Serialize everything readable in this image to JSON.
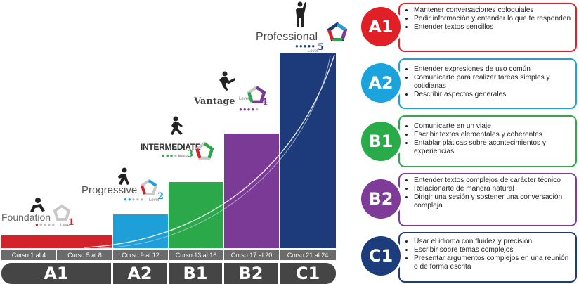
{
  "stages": [
    {
      "name": "Foundation",
      "level_word": "Level",
      "level_num": "1",
      "color": "#d2232a"
    },
    {
      "name": "Progressive",
      "level_word": "Level",
      "level_num": "2",
      "color": "#1f9fd8"
    },
    {
      "name": "INTERMEDIATE",
      "level_word": "Level",
      "level_num": "3",
      "color": "#2aa84a"
    },
    {
      "name": "Vantage",
      "level_word": "Level",
      "level_num": "4",
      "color": "#7b3a96"
    },
    {
      "name": "Professional",
      "level_word": "Level",
      "level_num": "5",
      "color": "#1d3a7a"
    }
  ],
  "courses": [
    "Curso 1 al 4",
    "Curso 5 al 8",
    "Curso 9 al 12",
    "Curso 13 al 16",
    "Curso 17 al 20",
    "Curso 21 al 24"
  ],
  "levels": [
    "A1",
    "A2",
    "B1",
    "B2",
    "C1"
  ],
  "cards": [
    {
      "code": "A1",
      "color": "#e11f26",
      "items": [
        "Mantener conversaciones coloquiales",
        "Pedir información y entender lo que te responden",
        "Entender textos sencillos"
      ]
    },
    {
      "code": "A2",
      "color": "#1aa3dc",
      "items": [
        "Entender expresiones de uso común",
        "Comunicarte para realizar tareas simples y cotidianas",
        "Describir aspectos generales"
      ]
    },
    {
      "code": "B1",
      "color": "#2aab4a",
      "items": [
        "Comunicarte en un viaje",
        "Escribir textos elementales y coherentes",
        "Entablar pláticas sobre acontecimientos y experiencias"
      ]
    },
    {
      "code": "B2",
      "color": "#7e3b97",
      "items": [
        "Entender textos complejos de carácter técnico",
        "Relacionarte de manera natural",
        "Dirigir una sesión y sostener una conversación compleja"
      ]
    },
    {
      "code": "C1",
      "color": "#1c3c7c",
      "items": [
        "Usar el idioma con fluidez y precisión.",
        "Escribir sobre temas complejos",
        "Presentar argumentos complejos en una reunión o de forma escrita"
      ]
    }
  ]
}
